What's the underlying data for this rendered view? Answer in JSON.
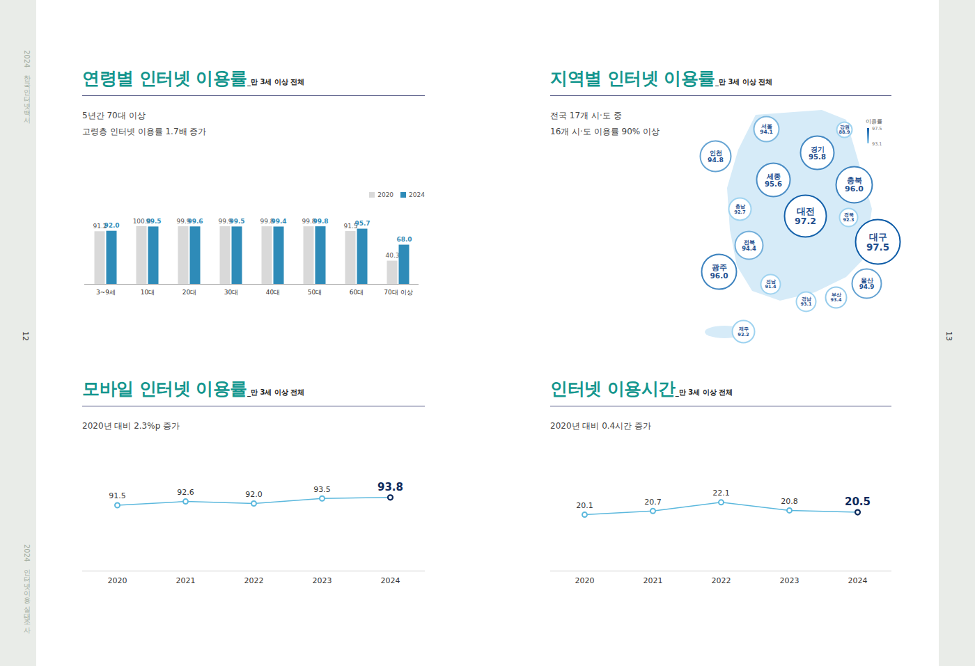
{
  "page": {
    "side_texts": [
      "2024 한국인터넷백서",
      "2024 인터넷이용 실태조사"
    ],
    "page_numbers": [
      12,
      13
    ]
  },
  "chart_data": [
    {
      "type": "bar",
      "title": "연령별 인터넷 이용률",
      "subtitle": "_만 3세 이상 전체",
      "annotations": [
        "5년간 70대 이상",
        "고령층 인터넷 이용률 1.7배 증가"
      ],
      "categories": [
        "3~9세",
        "10대",
        "20대",
        "30대",
        "40대",
        "50대",
        "60대",
        "70대 이상"
      ],
      "series": [
        {
          "name": "2020",
          "color": "#d9d9d9",
          "values": [
            91.2,
            100,
            99.9,
            99.9,
            99.8,
            99.8,
            91.5,
            40.3
          ],
          "value_labels": [
            "91.2",
            "100.0",
            "99.9",
            "99.9",
            "99.8",
            "99.8",
            "91.5",
            "40.3"
          ]
        },
        {
          "name": "2024",
          "color": "#2e8bb8",
          "values": [
            92.0,
            99.5,
            99.6,
            99.5,
            99.4,
            99.8,
            95.7,
            68.0
          ],
          "value_labels": [
            "92.0",
            "99.5",
            "99.6",
            "99.5",
            "99.4",
            "99.8",
            "95.7",
            "68.0"
          ]
        }
      ],
      "ylim": [
        0,
        100
      ],
      "yticks": [],
      "tick_labels": "x",
      "data_labels": true,
      "legend": "top-right",
      "grid": false
    },
    {
      "type": "map",
      "title": "지역별 인터넷 이용률",
      "subtitle": "_만 3세 이상 전체",
      "annotations": [
        "전국 17개 시·도 중",
        "16개 시·도 이용률 90% 이상"
      ],
      "categories": [
        "서울",
        "경기",
        "인천",
        "강원",
        "세종",
        "충북",
        "충남",
        "대전",
        "경북",
        "대구",
        "전북",
        "광주",
        "전남",
        "경남",
        "부산",
        "울산",
        "제주"
      ],
      "values": [
        94.1,
        95.8,
        94.8,
        88.9,
        95.6,
        96.0,
        92.7,
        97.2,
        92.3,
        97.5,
        94.4,
        96.0,
        91.4,
        93.1,
        93.4,
        94.9,
        92.2
      ],
      "value_labels": [
        "94.1",
        "95.8",
        "94.8",
        "88.9",
        "95.6",
        "96.0",
        "92.7",
        "97.2",
        "92.3",
        "97.5",
        "94.4",
        "96.0",
        "91.4",
        "93.1",
        "93.4",
        "94.9",
        "92.2"
      ],
      "data_labels": true,
      "color_scale": {
        "label": "이용률",
        "range": [
          93.1,
          97.5
        ],
        "ticks": [
          93.1,
          97.5
        ]
      }
    },
    {
      "type": "line",
      "title": "모바일 인터넷 이용률",
      "subtitle": "_만 3세 이상 전체",
      "annotations": [
        "2020년 대비 2.3%p 증가"
      ],
      "categories": [
        "2020",
        "2021",
        "2022",
        "2023",
        "2024"
      ],
      "values": [
        91.5,
        92.6,
        92.0,
        93.5,
        93.8
      ],
      "value_labels": [
        "91.5",
        "92.6",
        "92.0",
        "93.5",
        "93.8"
      ],
      "color": "#5bb8dd",
      "marker": "circle",
      "ylim": [
        72,
        105
      ],
      "yticks": [],
      "tick_labels": "x",
      "data_labels": true,
      "grid": false
    },
    {
      "type": "line",
      "title": "인터넷 이용시간",
      "subtitle": "_만 3세 이상 전체",
      "annotations": [
        "2020년 대비 0.4시간 증가"
      ],
      "categories": [
        "2020",
        "2021",
        "2022",
        "2023",
        "2024"
      ],
      "values": [
        20.1,
        20.7,
        22.1,
        20.8,
        20.5
      ],
      "value_labels": [
        "20.1",
        "20.7",
        "22.1",
        "20.8",
        "20.5"
      ],
      "color": "#5bb8dd",
      "marker": "circle",
      "ylim": [
        11,
        29
      ],
      "yticks": [],
      "tick_labels": "x",
      "data_labels": true,
      "grid": false
    }
  ]
}
